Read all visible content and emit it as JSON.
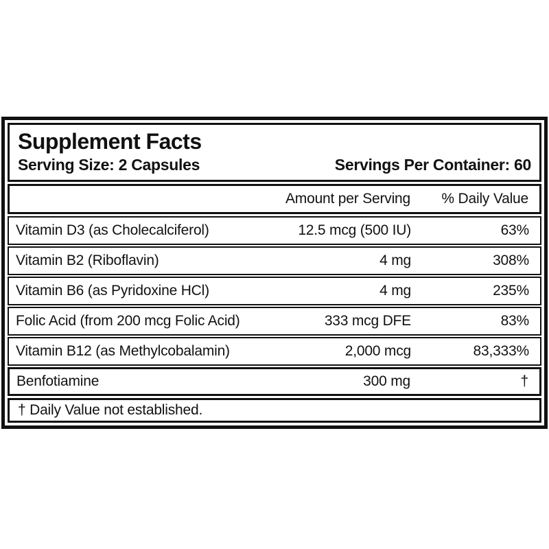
{
  "label": {
    "title": "Supplement Facts",
    "serving_size": "Serving Size: 2 Capsules",
    "servings_per_container": "Servings Per Container: 60",
    "columns": {
      "amount": "Amount per Serving",
      "daily_value": "% Daily Value"
    },
    "rows": [
      {
        "name": "Vitamin D3 (as Cholecalciferol)",
        "amount": "12.5 mcg (500 IU)",
        "dv": "63%"
      },
      {
        "name": "Vitamin B2 (Riboflavin)",
        "amount": "4 mg",
        "dv": "308%"
      },
      {
        "name": "Vitamin B6 (as Pyridoxine HCl)",
        "amount": "4 mg",
        "dv": "235%"
      },
      {
        "name": "Folic Acid (from 200 mcg Folic Acid)",
        "amount": "333 mcg DFE",
        "dv": "83%"
      },
      {
        "name": "Vitamin B12 (as Methylcobalamin)",
        "amount": "2,000 mcg",
        "dv": "83,333%"
      }
    ],
    "other_rows": [
      {
        "name": "Benfotiamine",
        "amount": "300 mg",
        "dv": "†"
      }
    ],
    "footnote": "† Daily Value not established.",
    "colors": {
      "ink": "#111111",
      "background": "#ffffff"
    }
  }
}
